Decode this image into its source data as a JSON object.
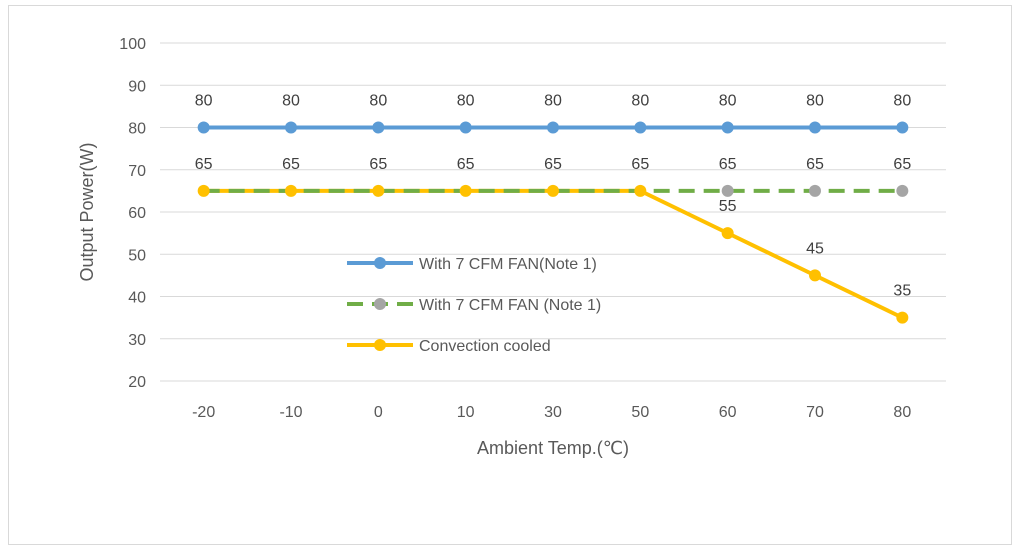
{
  "chart_data": {
    "type": "line",
    "title": "",
    "xlabel": "Ambient Temp.(℃)",
    "ylabel": "Output Power(W)",
    "categories": [
      "-20",
      "-10",
      "0",
      "10",
      "30",
      "50",
      "60",
      "70",
      "80"
    ],
    "ylim": [
      20,
      100
    ],
    "yticks": [
      "20",
      "30",
      "40",
      "50",
      "60",
      "70",
      "80",
      "90",
      "100"
    ],
    "grid": true,
    "legend_position": "center",
    "series": [
      {
        "name": "With 7 CFM FAN(Note 1)",
        "values": [
          80,
          80,
          80,
          80,
          80,
          80,
          80,
          80,
          80
        ],
        "color": "#5b9bd5",
        "style": "solid",
        "marker_color": "#5b9bd5"
      },
      {
        "name": "With 7 CFM FAN (Note 1)",
        "values": [
          65,
          65,
          65,
          65,
          65,
          65,
          65,
          65,
          65
        ],
        "color": "#70ad47",
        "style": "dashed",
        "marker_color": "#a5a5a5"
      },
      {
        "name": "Convection cooled",
        "values": [
          65,
          65,
          65,
          65,
          65,
          65,
          55,
          45,
          35
        ],
        "color": "#ffc000",
        "style": "solid",
        "marker_color": "#ffc000"
      }
    ]
  }
}
